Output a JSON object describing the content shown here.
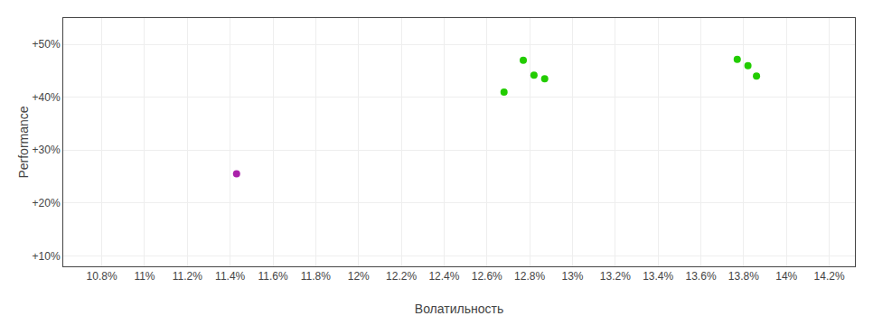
{
  "chart_data": {
    "type": "scatter",
    "xlabel": "Волатильность",
    "ylabel": "Performance",
    "series": [
      {
        "color": "#22cc00",
        "marker": "circle",
        "x": [
          12.68,
          12.82,
          12.87,
          12.77,
          13.77,
          13.82,
          13.86
        ],
        "values": [
          41.0,
          44.2,
          43.5,
          47.0,
          47.2,
          46.0,
          44.0
        ]
      },
      {
        "color": "#aa22aa",
        "marker": "circle",
        "x": [
          11.43
        ],
        "values": [
          25.5
        ]
      }
    ],
    "xlim": [
      10.62,
      14.32
    ],
    "ylim": [
      8.0,
      55.0
    ],
    "xticks": [
      {
        "value": 10.8,
        "label": "10.8%"
      },
      {
        "value": 11.0,
        "label": "11%"
      },
      {
        "value": 11.2,
        "label": "11.2%"
      },
      {
        "value": 11.4,
        "label": "11.4%"
      },
      {
        "value": 11.6,
        "label": "11.6%"
      },
      {
        "value": 11.8,
        "label": "11.8%"
      },
      {
        "value": 12.0,
        "label": "12%"
      },
      {
        "value": 12.2,
        "label": "12.2%"
      },
      {
        "value": 12.4,
        "label": "12.4%"
      },
      {
        "value": 12.6,
        "label": "12.6%"
      },
      {
        "value": 12.8,
        "label": "12.8%"
      },
      {
        "value": 13.0,
        "label": "13%"
      },
      {
        "value": 13.2,
        "label": "13.2%"
      },
      {
        "value": 13.4,
        "label": "13.4%"
      },
      {
        "value": 13.6,
        "label": "13.6%"
      },
      {
        "value": 13.8,
        "label": "13.8%"
      },
      {
        "value": 14.0,
        "label": "14%"
      },
      {
        "value": 14.2,
        "label": "14.2%"
      }
    ],
    "yticks": [
      {
        "value": 10,
        "label": "+10%"
      },
      {
        "value": 20,
        "label": "+20%"
      },
      {
        "value": 30,
        "label": "+30%"
      },
      {
        "value": 40,
        "label": "+40%"
      },
      {
        "value": 50,
        "label": "+50%"
      }
    ],
    "grid": true
  }
}
